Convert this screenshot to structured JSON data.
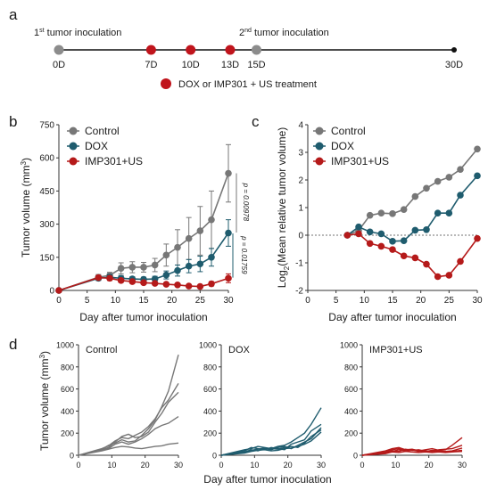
{
  "panel_letters": {
    "a": "a",
    "b": "b",
    "c": "c",
    "d": "d"
  },
  "colors": {
    "control": "#777777",
    "dox": "#1f5c6e",
    "imp": "#b51a1a",
    "timeline_grey": "#8c8c8c",
    "timeline_red": "#c0141c",
    "axis": "#333333"
  },
  "timeline": {
    "first_label": {
      "num": "1",
      "sup": "st",
      "text": " tumor inoculation"
    },
    "second_label": {
      "num": "2",
      "sup": "nd",
      "text": " tumor inoculation"
    },
    "points": [
      {
        "day": 0,
        "label": "0D",
        "kind": "inoculation"
      },
      {
        "day": 7,
        "label": "7D",
        "kind": "treatment"
      },
      {
        "day": 10,
        "label": "10D",
        "kind": "treatment"
      },
      {
        "day": 13,
        "label": "13D",
        "kind": "treatment"
      },
      {
        "day": 15,
        "label": "15D",
        "kind": "inoculation"
      },
      {
        "day": 30,
        "label": "30D",
        "kind": "end"
      }
    ],
    "legend_text": "DOX or IMP301 + US treatment"
  },
  "chart_data": [
    {
      "panel": "b",
      "type": "line",
      "xlabel": "Day after tumor inoculation",
      "ylabel_text": "Tumor volume  (mm",
      "ylabel_sup": "3",
      "ylabel_close": ")",
      "xlim": [
        0,
        30
      ],
      "ylim": [
        0,
        750
      ],
      "xticks": [
        0,
        5,
        10,
        15,
        20,
        25,
        30
      ],
      "yticks": [
        0,
        150,
        300,
        450,
        600,
        750
      ],
      "x": [
        0,
        7,
        9,
        11,
        13,
        15,
        17,
        19,
        21,
        23,
        25,
        27,
        30
      ],
      "series": [
        {
          "name": "Control",
          "values": [
            0,
            60,
            68,
            100,
            105,
            105,
            115,
            160,
            195,
            235,
            270,
            320,
            530
          ],
          "err": [
            0,
            12,
            14,
            25,
            25,
            22,
            30,
            50,
            80,
            95,
            110,
            130,
            130
          ]
        },
        {
          "name": "DOX",
          "values": [
            0,
            55,
            60,
            55,
            52,
            50,
            52,
            70,
            90,
            110,
            120,
            150,
            260
          ],
          "err": [
            0,
            10,
            12,
            12,
            10,
            10,
            12,
            18,
            25,
            30,
            35,
            40,
            60
          ]
        },
        {
          "name": "IMP301+US",
          "values": [
            0,
            58,
            55,
            45,
            40,
            35,
            32,
            28,
            25,
            20,
            18,
            30,
            55
          ],
          "err": [
            0,
            8,
            10,
            8,
            8,
            6,
            6,
            6,
            6,
            5,
            5,
            10,
            20
          ]
        }
      ],
      "annotations": [
        {
          "text": "p = 0.00978",
          "between": [
            "Control",
            "DOX"
          ]
        },
        {
          "text": "p = 0.01759",
          "between": [
            "DOX",
            "IMP301+US"
          ]
        }
      ]
    },
    {
      "panel": "c",
      "type": "line",
      "xlabel": "Day after tumor inoculation",
      "ylabel_text": "Log",
      "ylabel_sub": "2",
      "ylabel_rest": "(Mean relative tumor volume)",
      "xlim": [
        0,
        30
      ],
      "ylim": [
        -2,
        4
      ],
      "xticks": [
        0,
        5,
        10,
        15,
        20,
        25,
        30
      ],
      "yticks": [
        -2,
        -1,
        0,
        1,
        2,
        3,
        4
      ],
      "reference_line": 0,
      "x": [
        7,
        9,
        11,
        13,
        15,
        17,
        19,
        21,
        23,
        25,
        27,
        30
      ],
      "series": [
        {
          "name": "Control",
          "values": [
            0,
            0.17,
            0.72,
            0.8,
            0.78,
            0.93,
            1.4,
            1.7,
            1.95,
            2.1,
            2.38,
            3.12
          ]
        },
        {
          "name": "DOX",
          "values": [
            0,
            0.3,
            0.12,
            0.05,
            -0.22,
            -0.2,
            0.18,
            0.2,
            0.8,
            0.8,
            1.45,
            2.15
          ]
        },
        {
          "name": "IMP301+US",
          "values": [
            0,
            0.05,
            -0.3,
            -0.4,
            -0.52,
            -0.75,
            -0.82,
            -1.05,
            -1.5,
            -1.45,
            -0.95,
            -0.12
          ]
        }
      ]
    },
    {
      "panel": "d",
      "type": "line",
      "ylabel_text": "Tumor volume  (mm",
      "ylabel_sup": "3",
      "ylabel_close": ")",
      "xlabel": "Day after tumor inoculation",
      "xlim": [
        0,
        30
      ],
      "ylim": [
        0,
        1000
      ],
      "xticks": [
        0,
        10,
        20,
        30
      ],
      "yticks": [
        0,
        200,
        400,
        600,
        800,
        1000
      ],
      "x": [
        7,
        9,
        11,
        13,
        15,
        17,
        19,
        21,
        23,
        25,
        27,
        30
      ],
      "subplots": [
        {
          "title": "Control",
          "color_key": "control",
          "lines": [
            [
              55,
              90,
              110,
              140,
              120,
              130,
              180,
              240,
              320,
              440,
              580,
              910
            ],
            [
              60,
              85,
              130,
              160,
              150,
              180,
              210,
              260,
              330,
              430,
              500,
              650
            ],
            [
              50,
              70,
              120,
              170,
              190,
              160,
              170,
              210,
              300,
              380,
              480,
              570
            ],
            [
              45,
              60,
              100,
              120,
              100,
              120,
              150,
              190,
              240,
              270,
              290,
              350
            ],
            [
              40,
              55,
              70,
              80,
              75,
              65,
              60,
              70,
              80,
              85,
              100,
              110
            ]
          ]
        },
        {
          "title": "DOX",
          "color_key": "dox",
          "lines": [
            [
              50,
              60,
              80,
              70,
              60,
              80,
              90,
              120,
              160,
              200,
              280,
              430
            ],
            [
              40,
              70,
              60,
              50,
              70,
              60,
              50,
              100,
              120,
              140,
              220,
              280
            ],
            [
              30,
              50,
              40,
              60,
              50,
              70,
              80,
              60,
              90,
              120,
              150,
              250
            ],
            [
              25,
              45,
              55,
              65,
              60,
              55,
              70,
              80,
              70,
              110,
              170,
              230
            ],
            [
              20,
              35,
              45,
              50,
              40,
              45,
              60,
              65,
              80,
              100,
              130,
              210
            ]
          ]
        },
        {
          "title": "IMP301+US",
          "color_key": "imp",
          "lines": [
            [
              40,
              60,
              70,
              50,
              55,
              40,
              50,
              60,
              45,
              50,
              90,
              160
            ],
            [
              30,
              50,
              60,
              40,
              50,
              45,
              40,
              35,
              50,
              55,
              60,
              90
            ],
            [
              25,
              40,
              35,
              55,
              45,
              50,
              35,
              45,
              40,
              35,
              40,
              65
            ],
            [
              20,
              35,
              50,
              40,
              30,
              35,
              40,
              30,
              35,
              30,
              35,
              45
            ],
            [
              15,
              30,
              25,
              35,
              30,
              25,
              30,
              25,
              30,
              25,
              30,
              35
            ]
          ]
        }
      ]
    }
  ]
}
